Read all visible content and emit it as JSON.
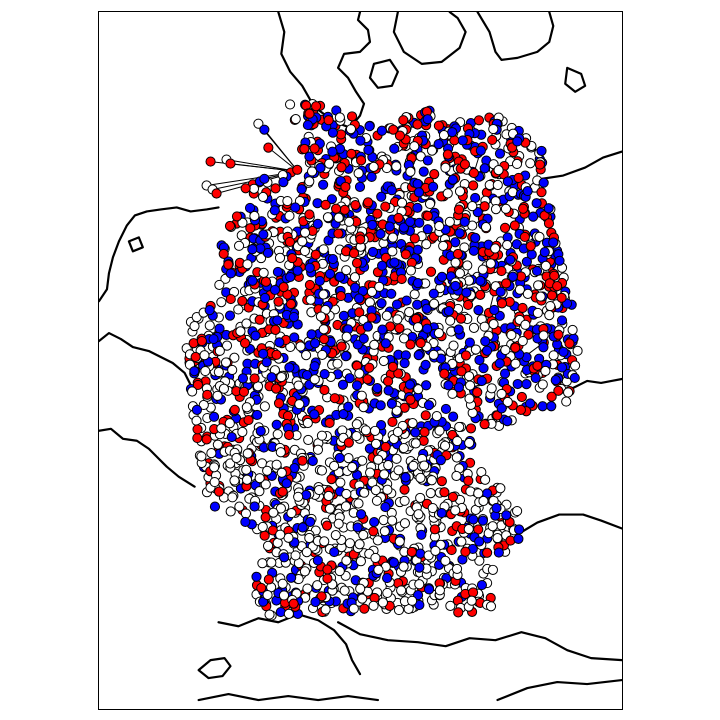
{
  "figure": {
    "type": "map-scatter",
    "region": "Germany",
    "node_categories": [
      {
        "name": "red",
        "color": "#ff0000"
      },
      {
        "name": "blue",
        "color": "#0000ff"
      },
      {
        "name": "white",
        "color": "#ffffff"
      }
    ],
    "edge_color": "#000000",
    "coastline_color": "#000000"
  },
  "colors": {
    "red": "#ff0000",
    "blue": "#0000ff",
    "white": "#ffffff",
    "edge": "#000000"
  }
}
